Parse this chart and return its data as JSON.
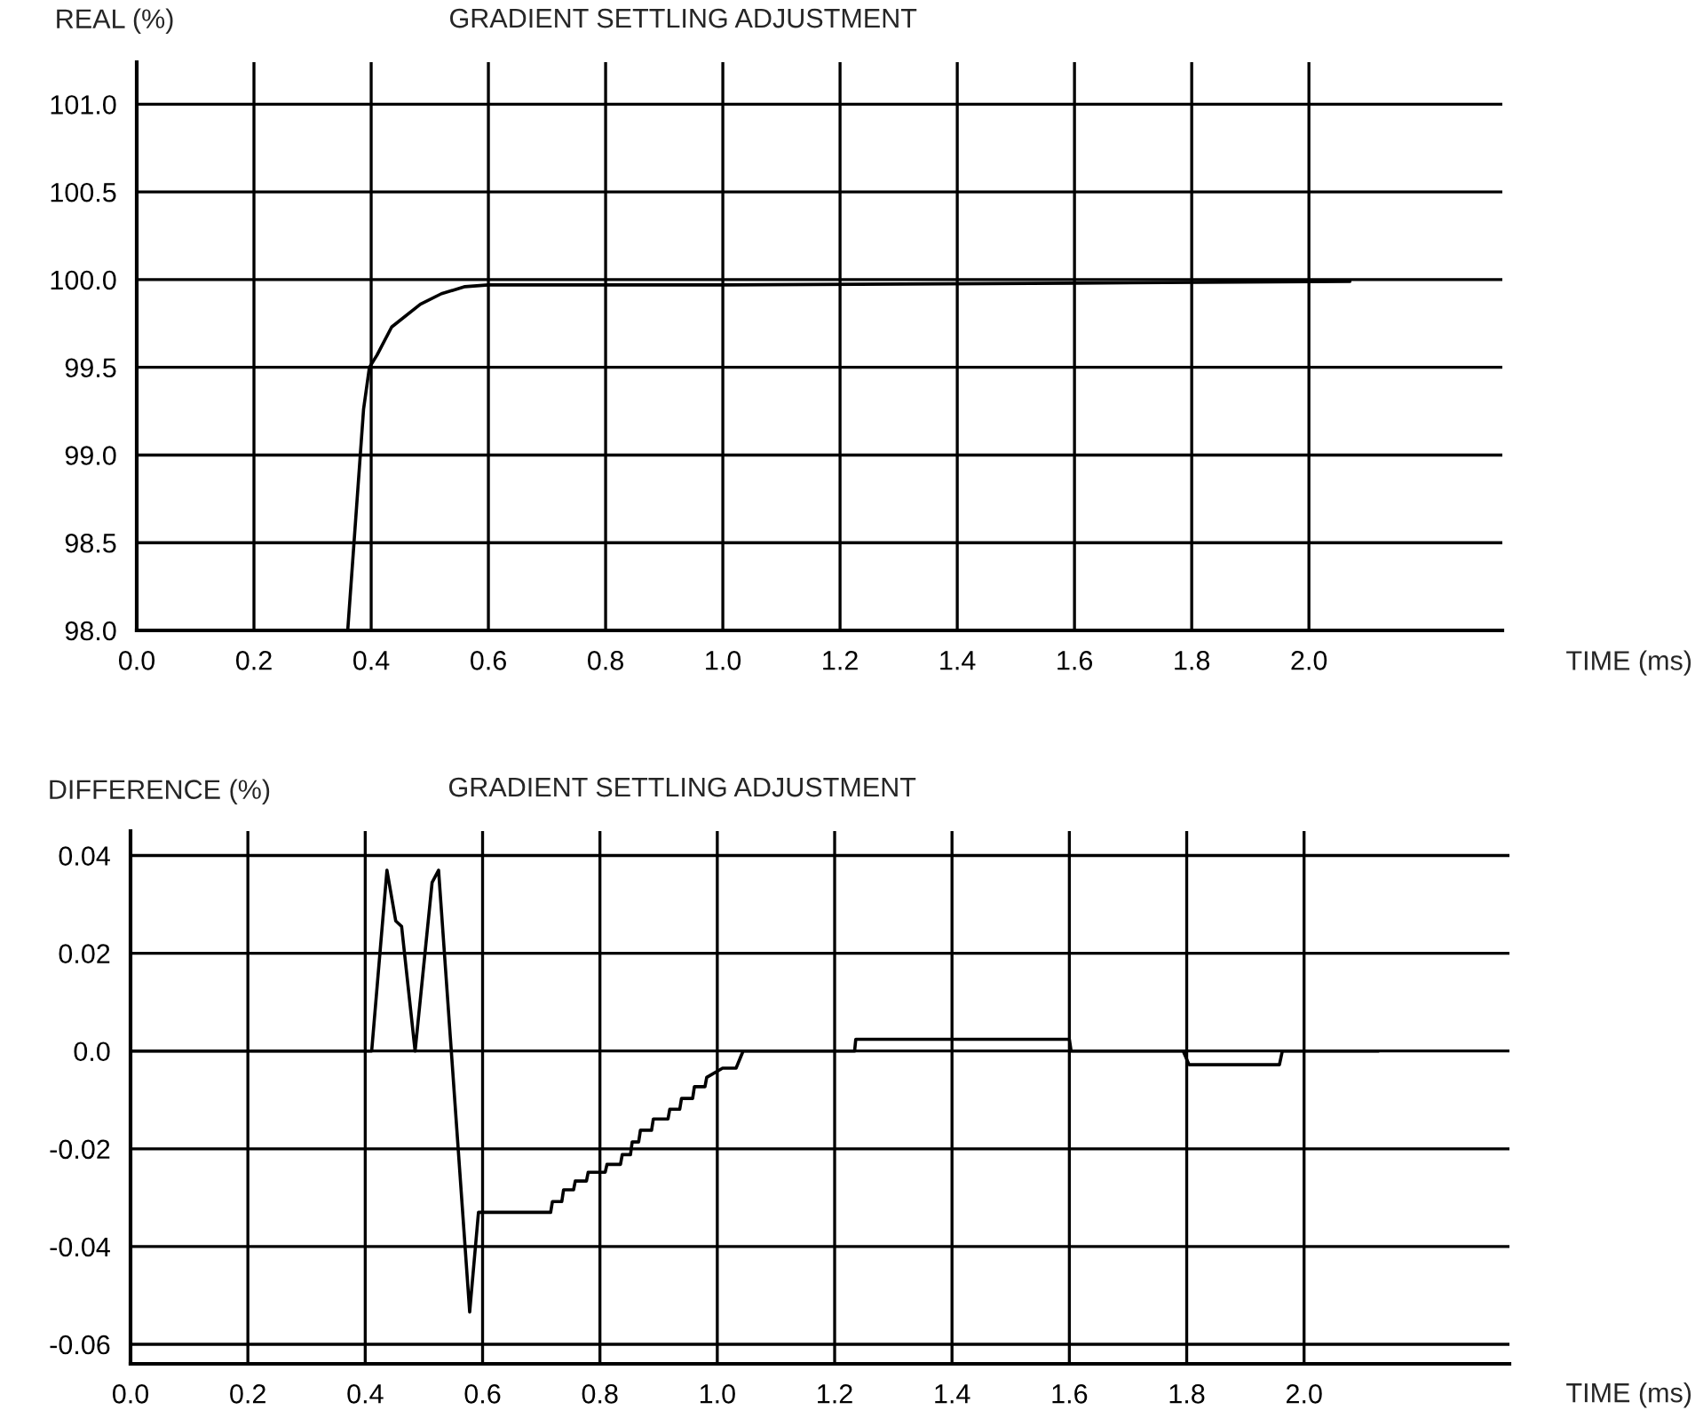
{
  "chart_data": [
    {
      "type": "line",
      "title": "GRADIENT SETTLING ADJUSTMENT",
      "xlabel": "TIME (ms)",
      "ylabel": "REAL (%)",
      "grid": true,
      "legend": false,
      "marker": "none",
      "line_style": "solid",
      "xlim": [
        0,
        2.33
      ],
      "ylim": [
        98.0,
        101.24
      ],
      "xticks": [
        {
          "value": 0,
          "label": "0.0"
        },
        0.2,
        0.4,
        0.6,
        0.8,
        {
          "value": 1,
          "label": "1.0"
        },
        1.2,
        1.4,
        1.6,
        1.8,
        {
          "value": 2,
          "label": "2.0"
        }
      ],
      "yticks": [
        {
          "value": 98,
          "label": "98.0"
        },
        98.5,
        {
          "value": 99,
          "label": "99.0"
        },
        99.5,
        {
          "value": 100,
          "label": "100.0"
        },
        100.5,
        {
          "value": 101,
          "label": "101.0"
        }
      ],
      "series": [
        {
          "color": "#000000",
          "x": [
            0.36,
            0.387,
            0.397,
            0.41,
            0.435,
            0.484,
            0.52,
            0.56,
            0.6,
            1.0,
            1.6,
            2.07
          ],
          "values": [
            98.0,
            99.26,
            99.5,
            99.57,
            99.73,
            99.86,
            99.92,
            99.96,
            99.97,
            99.97,
            99.98,
            99.99
          ]
        }
      ]
    },
    {
      "type": "line",
      "title": "GRADIENT SETTLING ADJUSTMENT",
      "xlabel": "TIME (ms)",
      "ylabel": "DIFFERENCE (%)",
      "grid": true,
      "legend": false,
      "marker": "none",
      "line_style": "solid",
      "xlim": [
        0,
        2.35
      ],
      "ylim": [
        -0.064,
        0.045
      ],
      "xticks": [
        {
          "value": 0,
          "label": "0.0"
        },
        0.2,
        0.4,
        0.6,
        0.8,
        {
          "value": 1,
          "label": "1.0"
        },
        1.2,
        1.4,
        1.6,
        1.8,
        {
          "value": 2,
          "label": "2.0"
        }
      ],
      "yticks": [
        {
          "value": -0.06,
          "label": "-0.06"
        },
        {
          "value": -0.04,
          "label": "-0.04"
        },
        {
          "value": -0.02,
          "label": "-0.02"
        },
        {
          "value": 0,
          "label": "0.0"
        },
        0.02,
        0.04
      ],
      "series": [
        {
          "color": "#000000",
          "x": [
            0.0,
            0.411,
            0.437,
            0.452,
            0.462,
            0.485,
            0.514,
            0.525,
            0.578,
            0.593,
            0.716,
            0.719,
            0.735,
            0.738,
            0.755,
            0.758,
            0.777,
            0.78,
            0.809,
            0.812,
            0.835,
            0.838,
            0.852,
            0.855,
            0.866,
            0.869,
            0.888,
            0.891,
            0.916,
            0.919,
            0.936,
            0.939,
            0.958,
            0.961,
            0.979,
            0.982,
            1.009,
            1.032,
            1.044,
            1.234,
            1.236,
            1.6,
            1.603,
            1.794,
            1.804,
            1.958,
            1.963,
            2.127
          ],
          "values": [
            0.0,
            0.0,
            0.037,
            0.0266,
            0.0255,
            0.0,
            0.0345,
            0.037,
            -0.0534,
            -0.033,
            -0.033,
            -0.0308,
            -0.0308,
            -0.0284,
            -0.0284,
            -0.0266,
            -0.0266,
            -0.0248,
            -0.0248,
            -0.0232,
            -0.0232,
            -0.0212,
            -0.0212,
            -0.0186,
            -0.0186,
            -0.0162,
            -0.0162,
            -0.0139,
            -0.0139,
            -0.0119,
            -0.0119,
            -0.0097,
            -0.0097,
            -0.0073,
            -0.0073,
            -0.0054,
            -0.0035,
            -0.0035,
            0.0,
            0.0,
            0.0024,
            0.0024,
            0.0,
            0.0,
            -0.0028,
            -0.0028,
            0.0,
            0.0
          ]
        }
      ]
    }
  ]
}
